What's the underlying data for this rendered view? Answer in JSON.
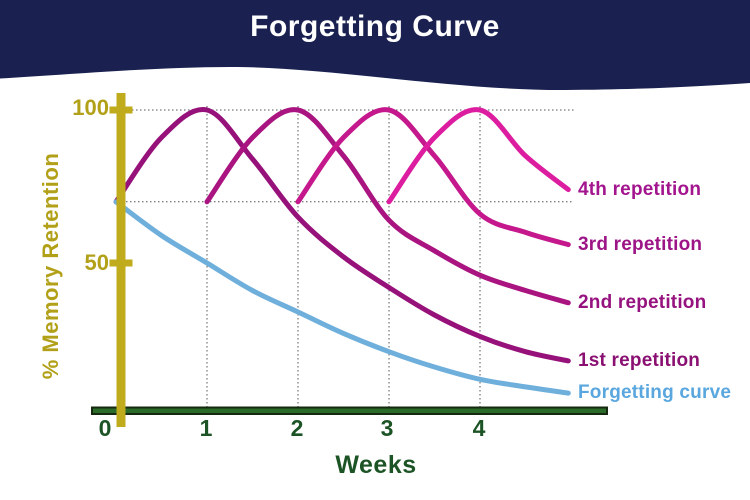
{
  "header": {
    "title": "Forgetting Curve",
    "bg_color": "#1a2150",
    "text_color": "#ffffff"
  },
  "chart_data": {
    "type": "line",
    "title": "Forgetting Curve",
    "xlabel": "Weeks",
    "ylabel": "% Memory Retention",
    "x_ticks": [
      "0",
      "1",
      "2",
      "3",
      "4"
    ],
    "y_ticks": [
      {
        "label": "100",
        "value": 100
      },
      {
        "label": "50",
        "value": 50
      }
    ],
    "xlim": [
      0,
      5
    ],
    "ylim": [
      0,
      105
    ],
    "grid": {
      "style": "dotted",
      "h_lines_at_values": [
        100,
        70
      ],
      "v_lines_at_weeks": [
        1,
        2,
        3,
        4
      ]
    },
    "curve_start_value": 70,
    "series": [
      {
        "name": "1st repetition",
        "color": "#97117a",
        "label_color": "#8a1072",
        "points": [
          [
            0,
            70
          ],
          [
            0.5,
            91
          ],
          [
            1,
            100
          ],
          [
            1.5,
            84
          ],
          [
            2,
            65
          ],
          [
            2.5,
            52
          ],
          [
            3,
            42
          ],
          [
            3.5,
            33
          ],
          [
            4,
            26
          ],
          [
            4.5,
            21
          ],
          [
            4.97,
            18
          ]
        ]
      },
      {
        "name": "2nd repetition",
        "color": "#aa1480",
        "label_color": "#96127e",
        "points": [
          [
            1,
            70
          ],
          [
            1.5,
            91
          ],
          [
            2,
            100
          ],
          [
            2.5,
            85
          ],
          [
            3,
            64
          ],
          [
            3.5,
            54
          ],
          [
            4,
            46
          ],
          [
            4.5,
            41
          ],
          [
            4.97,
            37
          ]
        ]
      },
      {
        "name": "3rd repetition",
        "color": "#c4188c",
        "label_color": "#9d1486",
        "points": [
          [
            2,
            70
          ],
          [
            2.5,
            91
          ],
          [
            3,
            100
          ],
          [
            3.5,
            85
          ],
          [
            4,
            66
          ],
          [
            4.5,
            60
          ],
          [
            4.97,
            56
          ]
        ]
      },
      {
        "name": "4th repetition",
        "color": "#dd1da0",
        "label_color": "#a3158e",
        "points": [
          [
            3,
            70
          ],
          [
            3.5,
            91
          ],
          [
            4,
            100
          ],
          [
            4.5,
            85
          ],
          [
            4.97,
            74
          ]
        ]
      },
      {
        "name": "Forgetting curve",
        "color": "#6fafdc",
        "label_color": "#59a7de",
        "points": [
          [
            0,
            70
          ],
          [
            0.5,
            59
          ],
          [
            1,
            50
          ],
          [
            1.5,
            41
          ],
          [
            2,
            34
          ],
          [
            2.5,
            27
          ],
          [
            3,
            21
          ],
          [
            3.5,
            16
          ],
          [
            4,
            12
          ],
          [
            4.5,
            9.5
          ],
          [
            4.97,
            7.5
          ]
        ]
      }
    ],
    "colors": {
      "y_axis": "#bfab1c",
      "x_axis": "#2a6b2a",
      "x_axis_edge": "#16280f",
      "grid": "#555555",
      "header_bg": "#1a2150"
    },
    "legend_position": "right"
  }
}
